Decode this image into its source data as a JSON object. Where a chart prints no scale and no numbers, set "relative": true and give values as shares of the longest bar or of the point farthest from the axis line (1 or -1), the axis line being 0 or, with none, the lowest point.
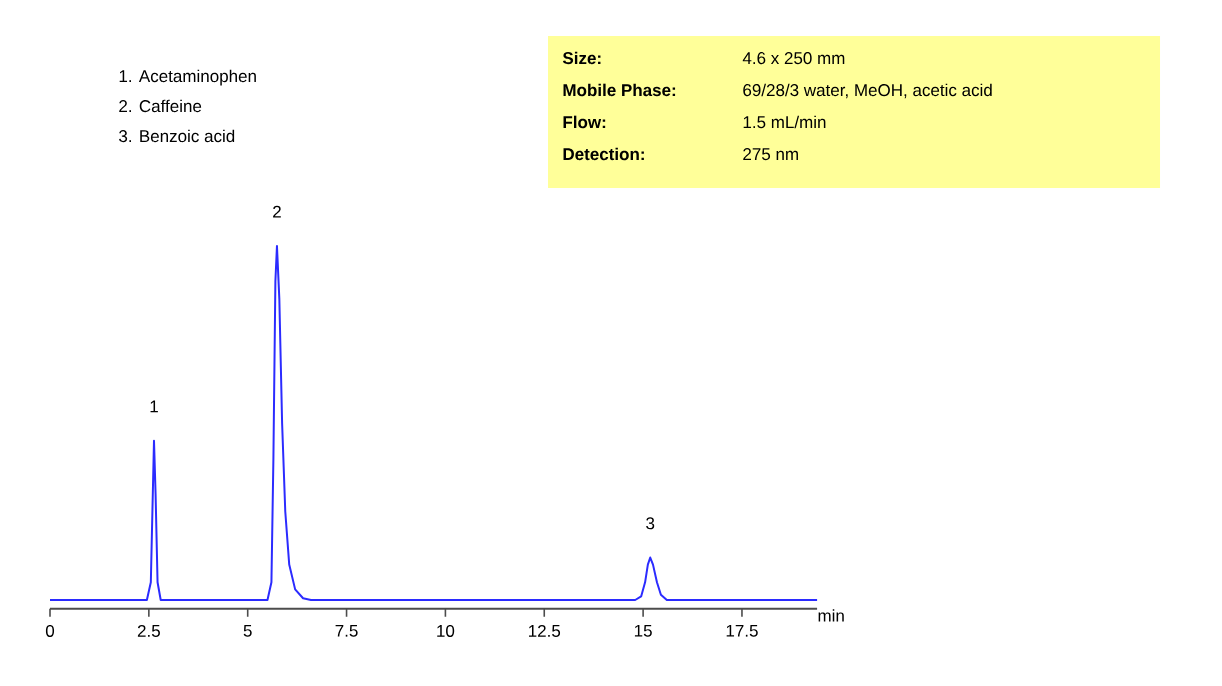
{
  "chart_data": {
    "type": "line",
    "relative": true,
    "xlabel": "min",
    "xlim": [
      0,
      19.4
    ],
    "xticks": [
      0,
      {
        "value": 2.5,
        "label": "2.5"
      },
      5,
      {
        "value": 7.5,
        "label": "7.5"
      },
      10,
      {
        "value": 12.5,
        "label": "12.5"
      },
      15,
      {
        "value": 17.5,
        "label": "17.5"
      }
    ],
    "x": [
      0,
      2.45,
      2.55,
      2.6,
      2.63,
      2.67,
      2.72,
      2.8,
      5.5,
      5.6,
      5.65,
      5.7,
      5.74,
      5.8,
      5.87,
      5.95,
      6.05,
      6.2,
      6.4,
      6.6,
      14.8,
      14.95,
      15.05,
      15.12,
      15.18,
      15.25,
      15.35,
      15.45,
      15.6,
      19.4
    ],
    "series": [
      {
        "color": "#2b2bff",
        "values": [
          0,
          0,
          0.05,
          0.3,
          0.45,
          0.3,
          0.05,
          0,
          0,
          0.05,
          0.4,
          0.9,
          1,
          0.85,
          0.5,
          0.25,
          0.1,
          0.03,
          0.005,
          0,
          0,
          0.01,
          0.05,
          0.1,
          0.12,
          0.1,
          0.05,
          0.015,
          0,
          0
        ]
      }
    ],
    "annotations": [
      {
        "text": "1",
        "x": 2.63,
        "y": 0.45
      },
      {
        "text": "2",
        "x": 5.74,
        "y": 1
      },
      {
        "text": "3",
        "x": 15.18,
        "y": 0.12
      },
      "1.  Acetaminophen",
      "2.  Caffeine",
      "3.  Benzoic acid",
      "Size:",
      "4.6 x 250 mm",
      "Mobile Phase:",
      "69/28/3 water, MeOH, acetic acid",
      "Flow:",
      "1.5 mL/min",
      "Detection:",
      "275 nm"
    ]
  }
}
